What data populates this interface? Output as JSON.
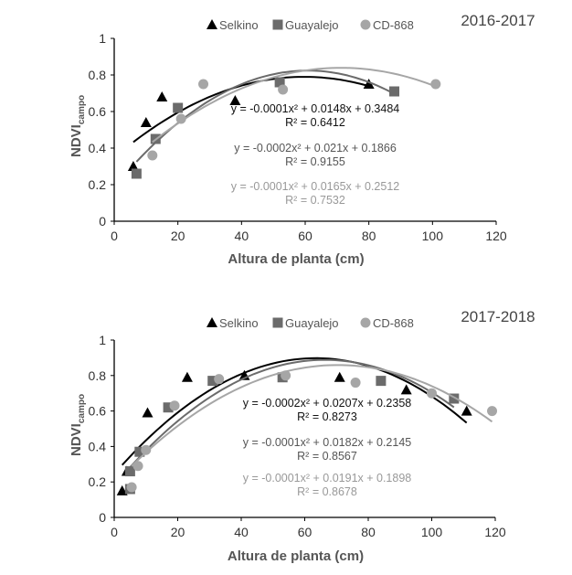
{
  "chart_data": [
    {
      "type": "scatter",
      "title": "2016-2017",
      "xlabel": "Altura de planta  (cm)",
      "ylabel": "NDVI",
      "ylabel_sub": "campo",
      "xlim": [
        0,
        120
      ],
      "ylim": [
        0,
        1
      ],
      "xticks": [
        "0",
        "20",
        "40",
        "60",
        "80",
        "100",
        "120"
      ],
      "yticks": [
        "0",
        "0.2",
        "0.4",
        "0.6",
        "0.8",
        "1"
      ],
      "grid": false,
      "legend": "top-center",
      "series": [
        {
          "name": "Selkino",
          "marker": "triangle",
          "color": "#000000",
          "x": [
            6,
            10,
            15,
            38,
            80
          ],
          "y": [
            0.3,
            0.54,
            0.68,
            0.66,
            0.75
          ],
          "equation": "y = -0.0001x² + 0.0148x + 0.3484",
          "r2": "R² = 0.6412"
        },
        {
          "name": "Guayalejo",
          "marker": "square",
          "color": "#6b6b6b",
          "x": [
            7,
            13,
            20,
            52,
            88
          ],
          "y": [
            0.26,
            0.45,
            0.62,
            0.76,
            0.71
          ],
          "equation": "y = -0.0002x² + 0.021x + 0.1866",
          "r2": "R² = 0.9155"
        },
        {
          "name": "CD-868",
          "marker": "circle",
          "color": "#a6a6a6",
          "x": [
            12,
            21,
            28,
            53,
            101
          ],
          "y": [
            0.36,
            0.56,
            0.75,
            0.72,
            0.75
          ],
          "equation": "y = -0.0001x² + 0.0165x + 0.2512",
          "r2": "R² = 0.7532"
        }
      ]
    },
    {
      "type": "scatter",
      "title": "2017-2018",
      "xlabel": "Altura de planta  (cm)",
      "ylabel": "NDVI",
      "ylabel_sub": "campo",
      "xlim": [
        0,
        120
      ],
      "ylim": [
        0,
        1
      ],
      "xticks": [
        "0",
        "20",
        "40",
        "60",
        "80",
        "100",
        "120"
      ],
      "yticks": [
        "0",
        "0.2",
        "0.4",
        "0.6",
        "0.8",
        "1"
      ],
      "grid": false,
      "legend": "top-center",
      "series": [
        {
          "name": "Selkino",
          "marker": "triangle",
          "color": "#000000",
          "x": [
            2.5,
            4,
            10.5,
            23,
            41,
            71,
            92,
            111
          ],
          "y": [
            0.15,
            0.26,
            0.59,
            0.79,
            0.8,
            0.79,
            0.72,
            0.6
          ],
          "equation": "y = -0.0002x² + 0.0207x + 0.2358",
          "r2": "R² = 0.8273"
        },
        {
          "name": "Guayalejo",
          "marker": "square",
          "color": "#6b6b6b",
          "x": [
            5,
            5,
            8,
            17,
            31,
            53,
            84,
            107
          ],
          "y": [
            0.16,
            0.26,
            0.37,
            0.62,
            0.77,
            0.79,
            0.77,
            0.67
          ],
          "equation": "y = -0.0001x² + 0.0182x + 0.2145",
          "r2": "R² = 0.8567"
        },
        {
          "name": "CD-868",
          "marker": "circle",
          "color": "#a6a6a6",
          "x": [
            5.5,
            7.5,
            10,
            19,
            33,
            54,
            76,
            100,
            119
          ],
          "y": [
            0.17,
            0.29,
            0.38,
            0.63,
            0.78,
            0.8,
            0.76,
            0.7,
            0.6
          ],
          "equation": "y = -0.0001x² + 0.0191x + 0.1898",
          "r2": "R² = 0.8678"
        }
      ]
    }
  ]
}
